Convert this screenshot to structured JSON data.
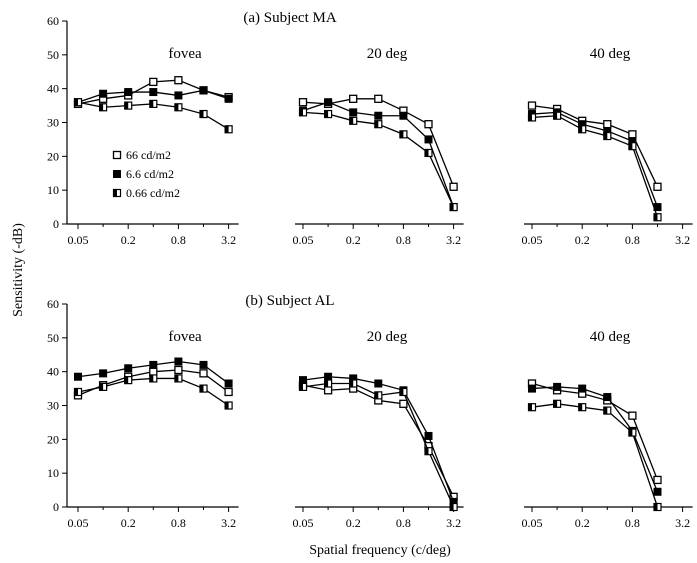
{
  "xlabel": "Spatial frequency (c/deg)",
  "ylabel": "Sensitivity (-dB)",
  "legend": [
    {
      "label": "66 cd/m2",
      "marker": "open-square"
    },
    {
      "label": "6.6 cd/m2",
      "marker": "filled-square"
    },
    {
      "label": "0.66 cd/m2",
      "marker": "half-square"
    }
  ],
  "chart_data": [
    {
      "type": "line",
      "figure_title": "(a) Subject MA",
      "title": "fovea",
      "xlabel": "Spatial frequency (c/deg)",
      "ylabel": "Sensitivity (-dB)",
      "x_ticks": [
        "0.05",
        "0.2",
        "0.8",
        "3.2"
      ],
      "ylim": [
        0,
        60
      ],
      "y_ticks": [
        0,
        10,
        20,
        30,
        40,
        50,
        60
      ],
      "x": [
        0.05,
        0.1,
        0.2,
        0.4,
        0.8,
        1.6,
        3.2
      ],
      "series": [
        {
          "name": "66 cd/m2",
          "values": [
            35.5,
            37,
            38,
            42,
            42.5,
            39.5,
            37.5
          ]
        },
        {
          "name": "6.6 cd/m2",
          "values": [
            36,
            38.5,
            39,
            39,
            38,
            39.5,
            37
          ]
        },
        {
          "name": "0.66 cd/m2",
          "values": [
            36,
            34.5,
            35,
            35.5,
            34.5,
            32.5,
            28
          ]
        }
      ]
    },
    {
      "type": "line",
      "title": "20 deg",
      "x_ticks": [
        "0.05",
        "0.2",
        "0.8",
        "3.2"
      ],
      "ylim": [
        0,
        60
      ],
      "x": [
        0.05,
        0.1,
        0.2,
        0.4,
        0.8,
        1.6,
        3.2
      ],
      "series": [
        {
          "name": "66 cd/m2",
          "values": [
            36,
            35.5,
            37,
            37,
            33.5,
            29.5,
            11
          ]
        },
        {
          "name": "6.6 cd/m2",
          "values": [
            33.5,
            36,
            33,
            32,
            32,
            25,
            5
          ]
        },
        {
          "name": "0.66 cd/m2",
          "values": [
            33,
            32.5,
            30.5,
            29.5,
            26.5,
            21,
            5
          ]
        }
      ]
    },
    {
      "type": "line",
      "title": "40 deg",
      "x_ticks": [
        "0.05",
        "0.2",
        "0.8",
        "3.2"
      ],
      "ylim": [
        0,
        60
      ],
      "x": [
        0.05,
        0.1,
        0.2,
        0.4,
        0.8,
        1.6
      ],
      "series": [
        {
          "name": "66 cd/m2",
          "values": [
            35,
            34,
            30.5,
            29.5,
            26.5,
            11
          ]
        },
        {
          "name": "6.6 cd/m2",
          "values": [
            32.5,
            33,
            29.5,
            27.5,
            24.5,
            5
          ]
        },
        {
          "name": "0.66 cd/m2",
          "values": [
            31.5,
            32,
            28,
            26,
            23,
            2
          ]
        }
      ]
    },
    {
      "type": "line",
      "figure_title": "(b) Subject AL",
      "title": "fovea",
      "xlabel": "Spatial frequency (c/deg)",
      "ylabel": "Sensitivity (-dB)",
      "x_ticks": [
        "0.05",
        "0.2",
        "0.8",
        "3.2"
      ],
      "ylim": [
        0,
        60
      ],
      "y_ticks": [
        0,
        10,
        20,
        30,
        40,
        50,
        60
      ],
      "x": [
        0.05,
        0.1,
        0.2,
        0.4,
        0.8,
        1.6,
        3.2
      ],
      "series": [
        {
          "name": "66 cd/m2",
          "values": [
            33,
            36,
            38.5,
            40,
            40.5,
            39.5,
            34
          ]
        },
        {
          "name": "6.6 cd/m2",
          "values": [
            38.5,
            39.5,
            41,
            42,
            43,
            42,
            36.5
          ]
        },
        {
          "name": "0.66 cd/m2",
          "values": [
            34,
            35.5,
            37.5,
            38,
            38,
            35,
            30
          ]
        }
      ]
    },
    {
      "type": "line",
      "title": "20 deg",
      "x_ticks": [
        "0.05",
        "0.2",
        "0.8",
        "3.2"
      ],
      "ylim": [
        0,
        60
      ],
      "x": [
        0.05,
        0.1,
        0.2,
        0.4,
        0.8,
        1.6,
        3.2
      ],
      "series": [
        {
          "name": "66 cd/m2",
          "values": [
            36,
            34.5,
            35,
            31.5,
            30.5,
            18,
            3
          ]
        },
        {
          "name": "6.6 cd/m2",
          "values": [
            37.5,
            38.5,
            38,
            36.5,
            34.5,
            21,
            1.5
          ]
        },
        {
          "name": "0.66 cd/m2",
          "values": [
            35.5,
            36.5,
            36.5,
            33,
            34,
            16.5,
            0
          ]
        }
      ]
    },
    {
      "type": "line",
      "title": "40 deg",
      "x_ticks": [
        "0.05",
        "0.2",
        "0.8",
        "3.2"
      ],
      "ylim": [
        0,
        60
      ],
      "x": [
        0.05,
        0.1,
        0.2,
        0.4,
        0.8,
        1.6
      ],
      "series": [
        {
          "name": "66 cd/m2",
          "values": [
            36.5,
            34.5,
            33.5,
            31.5,
            27,
            8
          ]
        },
        {
          "name": "6.6 cd/m2",
          "values": [
            35,
            35.5,
            35,
            32.5,
            22.5,
            4.5
          ]
        },
        {
          "name": "0.66 cd/m2",
          "values": [
            29.5,
            30.5,
            29.5,
            28.5,
            22,
            0
          ]
        }
      ]
    }
  ]
}
